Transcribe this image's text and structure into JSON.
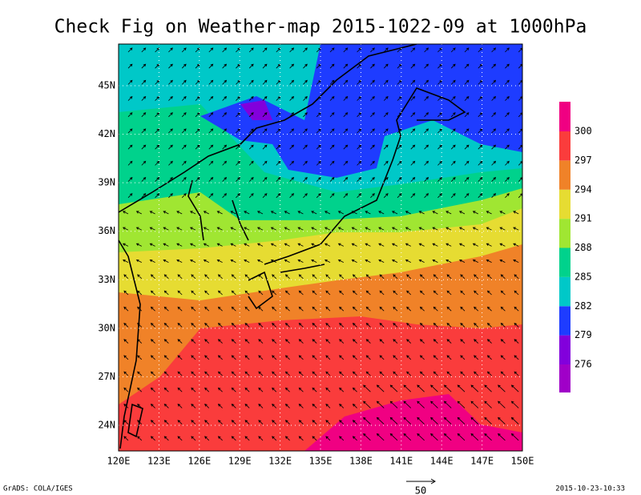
{
  "title": "Check Fig on Weather-map 2015-1022-09 at 1000hPa",
  "lon_ticks": [
    {
      "value": 120,
      "label": "120E"
    },
    {
      "value": 123,
      "label": "123E"
    },
    {
      "value": 126,
      "label": "126E"
    },
    {
      "value": 129,
      "label": "129E"
    },
    {
      "value": 132,
      "label": "132E"
    },
    {
      "value": 135,
      "label": "135E"
    },
    {
      "value": 138,
      "label": "138E"
    },
    {
      "value": 141,
      "label": "141E"
    },
    {
      "value": 144,
      "label": "144E"
    },
    {
      "value": 147,
      "label": "147E"
    },
    {
      "value": 150,
      "label": "150E"
    }
  ],
  "lat_ticks": [
    {
      "value": 24,
      "label": "24N"
    },
    {
      "value": 27,
      "label": "27N"
    },
    {
      "value": 30,
      "label": "30N"
    },
    {
      "value": 33,
      "label": "33N"
    },
    {
      "value": 36,
      "label": "36N"
    },
    {
      "value": 39,
      "label": "39N"
    },
    {
      "value": 42,
      "label": "42N"
    },
    {
      "value": 45,
      "label": "45N"
    }
  ],
  "colorbar": {
    "levels": [
      276,
      279,
      282,
      285,
      288,
      291,
      294,
      297,
      300
    ],
    "colors": [
      "#a000c8",
      "#8200dc",
      "#1e3cff",
      "#00c8c8",
      "#00d28c",
      "#a0e632",
      "#e6dc32",
      "#f08228",
      "#fa3c3c",
      "#f00082"
    ]
  },
  "vector_reference": "50",
  "footer_left": "GrADS: COLA/IGES",
  "footer_right": "2015-10-23-10:33"
}
